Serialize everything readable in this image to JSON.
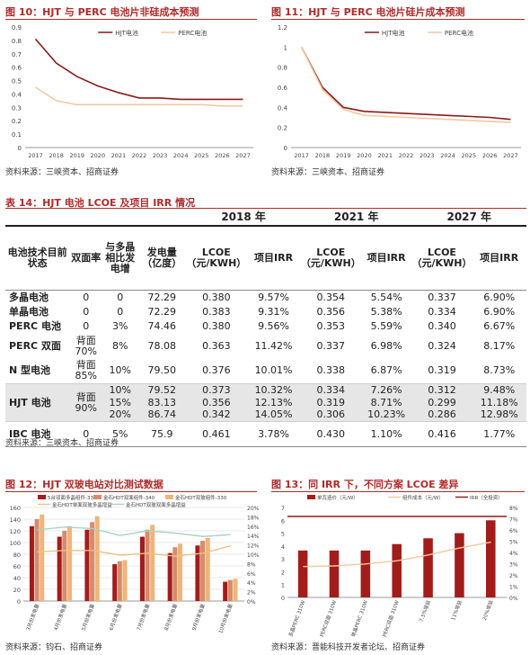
{
  "fig10": {
    "title": "图 10：HJT 与 PERC 电池片非硅成本预测",
    "source": "资料来源：三峡资本、招商证券"
  },
  "fig11": {
    "title": "图 11：HJT 与 PERC 电池片硅片成本预测",
    "source": "资料来源：三峡资本、招商证券"
  },
  "table14": {
    "title": "表 14：HJT 电池 LCOE 及项目 IRR 情况",
    "source": "资料来源：三峡资本、招商证券",
    "group_headers": [
      "2018 年",
      "2021 年",
      "2027 年"
    ],
    "col_headers": [
      "电池技术目前状态",
      "双面率",
      "与多晶相比发电增",
      "发电量（亿度）",
      "LCOE（元/KWH）",
      "项目IRR",
      "LCOE（元/KWH）",
      "项目IRR",
      "LCOE（元/KWH）",
      "项目IRR"
    ],
    "rows": [
      {
        "tech": "多晶电池",
        "bifacial": "0",
        "gain": "0",
        "gen": "72.29",
        "lcoe18": "0.380",
        "irr18": "9.57%",
        "lcoe21": "0.354",
        "irr21": "5.54%",
        "lcoe27": "0.337",
        "irr27": "6.90%"
      },
      {
        "tech": "单晶电池",
        "bifacial": "0",
        "gain": "0",
        "gen": "72.29",
        "lcoe18": "0.383",
        "irr18": "9.31%",
        "lcoe21": "0.356",
        "irr21": "5.38%",
        "lcoe27": "0.334",
        "irr27": "6.90%"
      },
      {
        "tech": "PERC 电池",
        "bifacial": "0",
        "gain": "3%",
        "gen": "74.46",
        "lcoe18": "0.380",
        "irr18": "9.56%",
        "lcoe21": "0.353",
        "irr21": "5.59%",
        "lcoe27": "0.340",
        "irr27": "6.67%"
      },
      {
        "tech": "PERC 双面",
        "bifacial": "背面70%",
        "gain": "8%",
        "gen": "78.08",
        "lcoe18": "0.363",
        "irr18": "11.42%",
        "lcoe21": "0.337",
        "irr21": "6.98%",
        "lcoe27": "0.324",
        "irr27": "8.17%"
      },
      {
        "tech": "N 型电池",
        "bifacial": "背面85%",
        "gain": "10%",
        "gen": "79.50",
        "lcoe18": "0.376",
        "irr18": "10.01%",
        "lcoe21": "0.338",
        "irr21": "6.87%",
        "lcoe27": "0.319",
        "irr27": "8.73%"
      }
    ],
    "hjt": {
      "tech": "HJT 电池",
      "bifacial": "背面90%",
      "sub": [
        {
          "gain": "10%",
          "gen": "79.52",
          "lcoe18": "0.373",
          "irr18": "10.32%",
          "lcoe21": "0.334",
          "irr21": "7.26%",
          "lcoe27": "0.312",
          "irr27": "9.48%"
        },
        {
          "gain": "15%",
          "gen": "83.13",
          "lcoe18": "0.356",
          "irr18": "12.13%",
          "lcoe21": "0.319",
          "irr21": "8.71%",
          "lcoe27": "0.299",
          "irr27": "11.18%"
        },
        {
          "gain": "20%",
          "gen": "86.74",
          "lcoe18": "0.342",
          "irr18": "14.05%",
          "lcoe21": "0.306",
          "irr21": "10.23%",
          "lcoe27": "0.286",
          "irr27": "12.98%"
        }
      ]
    },
    "ibc": {
      "tech": "IBC 电池",
      "bifacial": "0",
      "gain": "5%",
      "gen": "75.9",
      "lcoe18": "0.461",
      "irr18": "3.78%",
      "lcoe21": "0.430",
      "irr21": "1.10%",
      "lcoe27": "0.416",
      "irr27": "1.77%"
    }
  },
  "fig12": {
    "title": "图 12：HJT 双玻电站对比测试数据",
    "source": "资料来源：钧石、招商证券"
  },
  "fig13": {
    "title": "图 13：同 IRR 下，不同方案 LCOE 差异",
    "source": "资料来源：晋能科技开发者论坛、招商证券"
  },
  "chart_data": [
    {
      "id": "fig10",
      "type": "line",
      "x": [
        "2017",
        "2018",
        "2019",
        "2020",
        "2021",
        "2022",
        "2023",
        "2024",
        "2025",
        "2026",
        "2027"
      ],
      "series": [
        {
          "name": "HJT电池",
          "color": "#8b1a1a",
          "values": [
            0.81,
            0.63,
            0.53,
            0.46,
            0.41,
            0.37,
            0.37,
            0.36,
            0.36,
            0.36,
            0.36
          ]
        },
        {
          "name": "PERC电池",
          "color": "#f2c9a0",
          "values": [
            0.45,
            0.35,
            0.32,
            0.32,
            0.32,
            0.32,
            0.32,
            0.32,
            0.32,
            0.31,
            0.31
          ]
        }
      ],
      "ylim": [
        0,
        0.9
      ],
      "yticks": [
        "0",
        "0.1",
        "0.2",
        "0.3",
        "0.4",
        "0.5",
        "0.6",
        "0.7",
        "0.8",
        "0.9"
      ],
      "legend": "top-center",
      "grid": false
    },
    {
      "id": "fig11",
      "type": "line",
      "x": [
        "2017",
        "2018",
        "2019",
        "2020",
        "2021",
        "2022",
        "2023",
        "2024",
        "2025",
        "2026",
        "2027"
      ],
      "series": [
        {
          "name": "HJT电池",
          "color": "#8b1a1a",
          "values": [
            1.0,
            0.6,
            0.4,
            0.36,
            0.35,
            0.34,
            0.33,
            0.32,
            0.31,
            0.3,
            0.28
          ]
        },
        {
          "name": "PERC电池",
          "color": "#f2c9a0",
          "values": [
            1.0,
            0.58,
            0.38,
            0.32,
            0.31,
            0.3,
            0.29,
            0.28,
            0.27,
            0.26,
            0.25
          ]
        }
      ],
      "ylim": [
        0,
        1.2
      ],
      "yticks": [
        "0",
        "0.2",
        "0.4",
        "0.6",
        "0.8",
        "1",
        "1.2"
      ],
      "legend": "top-center",
      "grid": false
    },
    {
      "id": "fig12",
      "type": "bar",
      "categories": [
        "3月份发电量",
        "4月份发电量",
        "5月份发电量",
        "6月份发电量",
        "7月份发电量",
        "8月份发电量",
        "9月份发电量",
        "10月份发电量"
      ],
      "series": [
        {
          "name": "5台双面多晶组件-330",
          "color": "#a31c1c",
          "values": [
            128,
            110,
            122,
            63,
            110,
            82,
            95,
            33
          ]
        },
        {
          "name": "金石HDT双面组件-340",
          "color": "#d88b6a",
          "values": [
            140,
            120,
            135,
            68,
            122,
            92,
            103,
            36
          ]
        },
        {
          "name": "金石HDT双玻组件-330",
          "color": "#f0b47a",
          "values": [
            148,
            128,
            145,
            70,
            130,
            98,
            108,
            38
          ]
        }
      ],
      "lines": [
        {
          "name": "金石HDT单面双玻多晶增益",
          "color": "#f0c080",
          "axis": "right",
          "values": [
            10.5,
            10.8,
            10.8,
            9.8,
            10.2,
            9.6,
            10.2,
            11.8
          ]
        },
        {
          "name": "金石HDT双玻双面多晶增益",
          "color": "#a8d3c4",
          "axis": "right",
          "values": [
            15.2,
            15.8,
            15.5,
            14.0,
            15.0,
            14.5,
            13.8,
            14.2
          ]
        }
      ],
      "ylim": [
        0,
        160
      ],
      "yticks": [
        "0",
        "20",
        "40",
        "60",
        "80",
        "100",
        "120",
        "140",
        "160"
      ],
      "ylim_right": [
        0,
        20
      ],
      "yticks_right": [
        "0%",
        "2%",
        "4%",
        "6%",
        "8%",
        "10%",
        "12%",
        "14%",
        "16%",
        "18%",
        "20%"
      ],
      "legend": "top"
    },
    {
      "id": "fig13",
      "type": "bar",
      "categories": [
        "多晶PERC 310W",
        "多晶PERC双面 310W",
        "单晶PERC 310W",
        "单晶PERC双面 310W",
        "7.5%增益",
        "11%增益",
        "20%增益"
      ],
      "series": [
        {
          "name": "单瓦造价（元/W）",
          "color": "#a31c1c",
          "values": [
            3.65,
            3.65,
            3.65,
            4.15,
            4.6,
            5.0,
            6.0
          ]
        }
      ],
      "lines": [
        {
          "name": "组件成本（元/W）",
          "color": "#f2c9a0",
          "axis": "left",
          "values": [
            2.4,
            2.45,
            2.6,
            2.85,
            3.3,
            3.85,
            4.3
          ]
        },
        {
          "name": "IRR（全投资）",
          "color": "#8b1a1a",
          "axis": "right",
          "values": [
            7.2,
            7.2,
            7.2,
            7.2,
            7.2,
            7.2,
            7.2
          ]
        }
      ],
      "ylim": [
        0,
        7
      ],
      "yticks": [
        "0",
        "1",
        "2",
        "3",
        "4",
        "5",
        "6",
        "7"
      ],
      "ylim_right": [
        0,
        8
      ],
      "yticks_right": [
        "0%",
        "1%",
        "2%",
        "3%",
        "4%",
        "5%",
        "6%",
        "7%",
        "8%"
      ],
      "legend": "top"
    }
  ]
}
